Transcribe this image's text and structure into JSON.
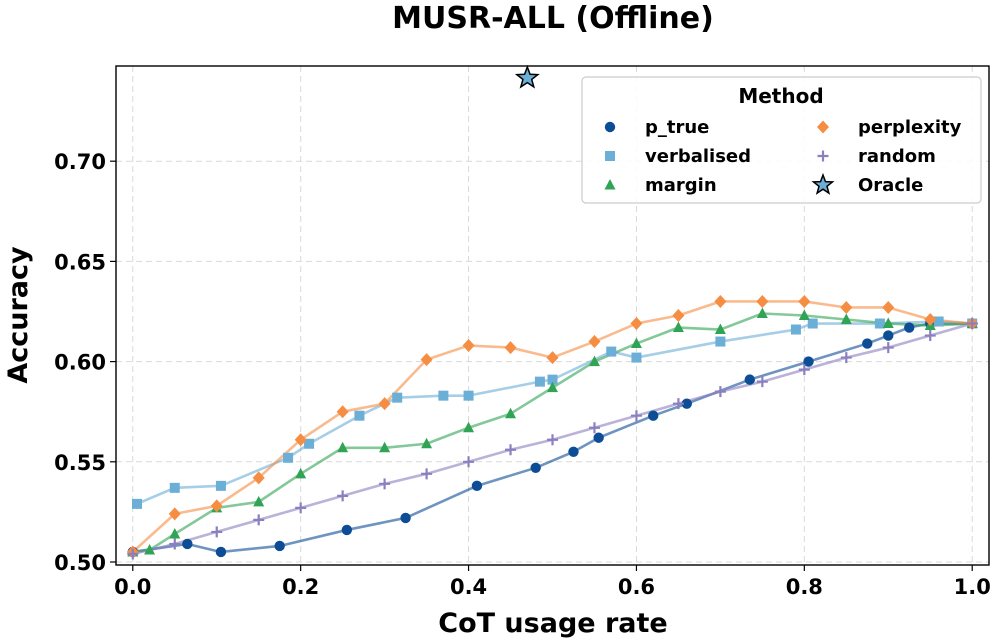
{
  "chart_data": {
    "type": "line",
    "title": "MUSR-ALL (Offline)",
    "xlabel": "CoT usage rate",
    "ylabel": "Accuracy",
    "xlim": [
      -0.02,
      1.02
    ],
    "ylim": [
      0.4985,
      0.7475
    ],
    "xticks": [
      0.0,
      0.2,
      0.4,
      0.6,
      0.8,
      1.0
    ],
    "xtick_labels": [
      "0.0",
      "0.2",
      "0.4",
      "0.6",
      "0.8",
      "1.0"
    ],
    "yticks": [
      0.5,
      0.55,
      0.6,
      0.65,
      0.7
    ],
    "ytick_labels": [
      "0.50",
      "0.55",
      "0.60",
      "0.65",
      "0.70"
    ],
    "grid": true,
    "legend": {
      "title": "Method",
      "position": "top-right",
      "columns": 2
    },
    "series": [
      {
        "name": "p_true",
        "marker": "circle",
        "color": "#0d4d96",
        "points": [
          [
            0.0,
            0.505
          ],
          [
            0.065,
            0.509
          ],
          [
            0.105,
            0.505
          ],
          [
            0.175,
            0.508
          ],
          [
            0.255,
            0.516
          ],
          [
            0.325,
            0.522
          ],
          [
            0.41,
            0.538
          ],
          [
            0.48,
            0.547
          ],
          [
            0.525,
            0.555
          ],
          [
            0.555,
            0.562
          ],
          [
            0.62,
            0.573
          ],
          [
            0.66,
            0.579
          ],
          [
            0.735,
            0.591
          ],
          [
            0.805,
            0.6
          ],
          [
            0.875,
            0.609
          ],
          [
            0.9,
            0.613
          ],
          [
            0.925,
            0.617
          ],
          [
            0.95,
            0.619
          ],
          [
            1.0,
            0.619
          ]
        ]
      },
      {
        "name": "verbalised",
        "marker": "square",
        "color": "#6baed6",
        "points": [
          [
            0.005,
            0.529
          ],
          [
            0.05,
            0.537
          ],
          [
            0.105,
            0.538
          ],
          [
            0.185,
            0.552
          ],
          [
            0.21,
            0.559
          ],
          [
            0.27,
            0.573
          ],
          [
            0.315,
            0.582
          ],
          [
            0.37,
            0.583
          ],
          [
            0.4,
            0.583
          ],
          [
            0.485,
            0.59
          ],
          [
            0.5,
            0.591
          ],
          [
            0.57,
            0.605
          ],
          [
            0.6,
            0.602
          ],
          [
            0.7,
            0.61
          ],
          [
            0.79,
            0.616
          ],
          [
            0.81,
            0.619
          ],
          [
            0.89,
            0.619
          ],
          [
            0.96,
            0.62
          ],
          [
            1.0,
            0.619
          ]
        ]
      },
      {
        "name": "margin",
        "marker": "triangle",
        "color": "#31a354",
        "points": [
          [
            0.0,
            0.505
          ],
          [
            0.02,
            0.506
          ],
          [
            0.05,
            0.514
          ],
          [
            0.1,
            0.527
          ],
          [
            0.15,
            0.53
          ],
          [
            0.2,
            0.544
          ],
          [
            0.25,
            0.557
          ],
          [
            0.3,
            0.557
          ],
          [
            0.35,
            0.559
          ],
          [
            0.4,
            0.567
          ],
          [
            0.45,
            0.574
          ],
          [
            0.5,
            0.587
          ],
          [
            0.55,
            0.6
          ],
          [
            0.6,
            0.609
          ],
          [
            0.65,
            0.617
          ],
          [
            0.7,
            0.616
          ],
          [
            0.75,
            0.624
          ],
          [
            0.8,
            0.623
          ],
          [
            0.85,
            0.621
          ],
          [
            0.9,
            0.619
          ],
          [
            0.95,
            0.618
          ],
          [
            1.0,
            0.619
          ]
        ]
      },
      {
        "name": "perplexity",
        "marker": "diamond",
        "color": "#f58d42",
        "points": [
          [
            0.0,
            0.505
          ],
          [
            0.05,
            0.524
          ],
          [
            0.1,
            0.528
          ],
          [
            0.15,
            0.542
          ],
          [
            0.2,
            0.561
          ],
          [
            0.25,
            0.575
          ],
          [
            0.3,
            0.579
          ],
          [
            0.35,
            0.601
          ],
          [
            0.4,
            0.608
          ],
          [
            0.45,
            0.607
          ],
          [
            0.5,
            0.602
          ],
          [
            0.55,
            0.61
          ],
          [
            0.6,
            0.619
          ],
          [
            0.65,
            0.623
          ],
          [
            0.7,
            0.63
          ],
          [
            0.75,
            0.63
          ],
          [
            0.8,
            0.63
          ],
          [
            0.85,
            0.627
          ],
          [
            0.9,
            0.627
          ],
          [
            0.95,
            0.621
          ],
          [
            1.0,
            0.619
          ]
        ]
      },
      {
        "name": "random",
        "marker": "plus",
        "color": "#8c7fc0",
        "points": [
          [
            0.0,
            0.504
          ],
          [
            0.05,
            0.509
          ],
          [
            0.1,
            0.515
          ],
          [
            0.15,
            0.521
          ],
          [
            0.2,
            0.527
          ],
          [
            0.25,
            0.533
          ],
          [
            0.3,
            0.539
          ],
          [
            0.35,
            0.544
          ],
          [
            0.4,
            0.55
          ],
          [
            0.45,
            0.556
          ],
          [
            0.5,
            0.561
          ],
          [
            0.55,
            0.567
          ],
          [
            0.6,
            0.573
          ],
          [
            0.65,
            0.579
          ],
          [
            0.7,
            0.585
          ],
          [
            0.75,
            0.59
          ],
          [
            0.8,
            0.596
          ],
          [
            0.85,
            0.602
          ],
          [
            0.9,
            0.607
          ],
          [
            0.95,
            0.613
          ],
          [
            1.0,
            0.619
          ]
        ]
      },
      {
        "name": "Oracle",
        "marker": "star",
        "color": "#6baed6",
        "points": [
          [
            0.47,
            0.7415
          ]
        ]
      }
    ]
  }
}
